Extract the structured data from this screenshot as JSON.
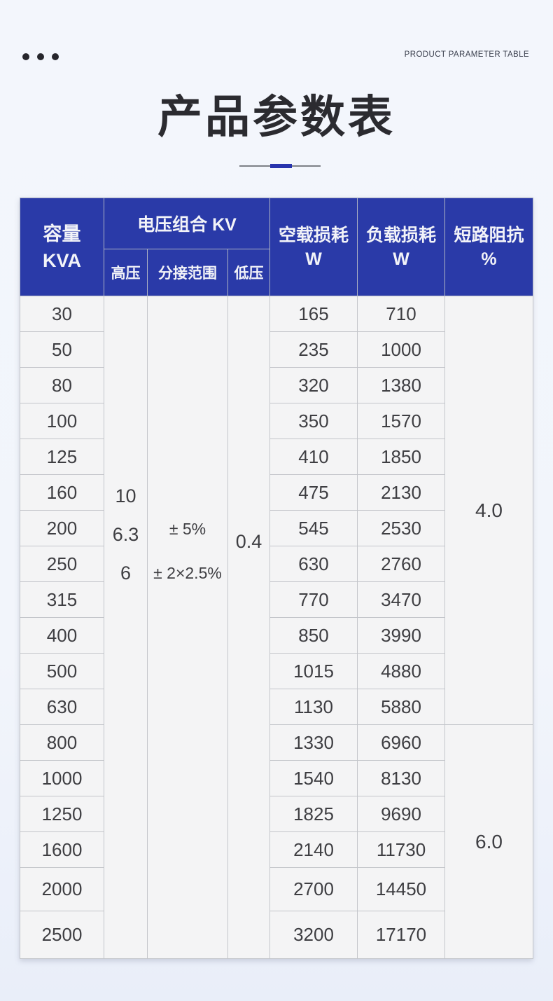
{
  "page": {
    "eyebrow": "PRODUCT PARAMETER TABLE",
    "title": "产品参数表"
  },
  "colors": {
    "header_blue": "#2a3aa8",
    "divider_accent_blue": "#2834ad",
    "divider_line_gray": "#7d8086",
    "page_background": "#f2f5fb",
    "cell_background": "#f4f4f5",
    "body_text": "#3e3e42"
  },
  "table": {
    "headers": {
      "capacity_line1": "容量",
      "capacity_line2": "KVA",
      "voltage_group": "电压组合 KV",
      "high_voltage": "高压",
      "tap_range": "分接范围",
      "low_voltage": "低压",
      "no_load_line1": "空载损耗",
      "no_load_line2": "W",
      "load_line1": "负载损耗",
      "load_line2": "W",
      "impedance_line1": "短路阻抗",
      "impedance_line2": "%"
    },
    "voltage": {
      "high_values": [
        "10",
        "6.3",
        "6"
      ],
      "tap_values": [
        "± 5%",
        "± 2×2.5%"
      ],
      "low_value": "0.4"
    },
    "impedance": [
      {
        "value": "4.0"
      },
      {
        "value": "6.0"
      }
    ],
    "rows": [
      {
        "kva": "30",
        "no_load": "165",
        "load": "710"
      },
      {
        "kva": "50",
        "no_load": "235",
        "load": "1000"
      },
      {
        "kva": "80",
        "no_load": "320",
        "load": "1380"
      },
      {
        "kva": "100",
        "no_load": "350",
        "load": "1570"
      },
      {
        "kva": "125",
        "no_load": "410",
        "load": "1850"
      },
      {
        "kva": "160",
        "no_load": "475",
        "load": "2130"
      },
      {
        "kva": "200",
        "no_load": "545",
        "load": "2530"
      },
      {
        "kva": "250",
        "no_load": "630",
        "load": "2760"
      },
      {
        "kva": "315",
        "no_load": "770",
        "load": "3470"
      },
      {
        "kva": "400",
        "no_load": "850",
        "load": "3990"
      },
      {
        "kva": "500",
        "no_load": "1015",
        "load": "4880"
      },
      {
        "kva": "630",
        "no_load": "1130",
        "load": "5880"
      },
      {
        "kva": "800",
        "no_load": "1330",
        "load": "6960"
      },
      {
        "kva": "1000",
        "no_load": "1540",
        "load": "8130"
      },
      {
        "kva": "1250",
        "no_load": "1825",
        "load": "9690"
      },
      {
        "kva": "1600",
        "no_load": "2140",
        "load": "11730"
      },
      {
        "kva": "2000",
        "no_load": "2700",
        "load": "14450"
      },
      {
        "kva": "2500",
        "no_load": "3200",
        "load": "17170"
      }
    ]
  }
}
